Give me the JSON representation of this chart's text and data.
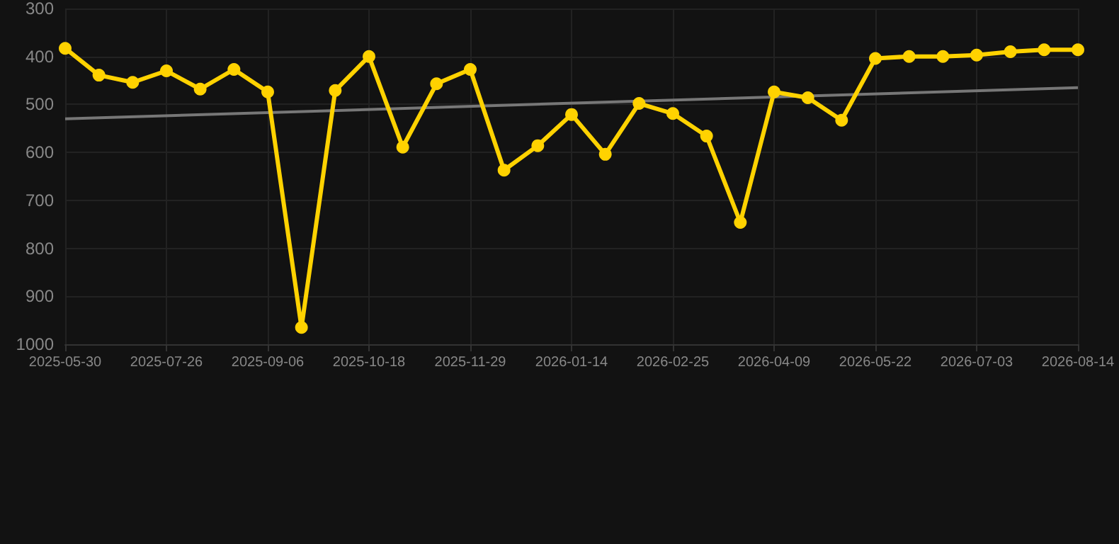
{
  "chart_data": {
    "type": "line",
    "categories": [
      "2025-05-30",
      null,
      null,
      "2025-07-26",
      null,
      null,
      "2025-09-06",
      null,
      null,
      "2025-10-18",
      null,
      null,
      "2025-11-29",
      null,
      null,
      "2026-01-14",
      null,
      null,
      "2026-02-25",
      null,
      null,
      "2026-04-09",
      null,
      null,
      "2026-05-22",
      null,
      null,
      "2026-07-03",
      null,
      null,
      "2026-08-14"
    ],
    "series": [
      {
        "color": "#ffd200",
        "marker": "circle",
        "values": [
          383,
          439,
          454,
          430,
          468,
          427,
          474,
          965,
          471,
          400,
          589,
          457,
          427,
          637,
          586,
          521,
          604,
          498,
          519,
          566,
          746,
          474,
          486,
          533,
          404,
          400,
          400,
          397,
          390,
          386,
          386
        ]
      },
      {
        "color": "#777777",
        "marker": "none",
        "values": [
          530,
          null,
          null,
          null,
          null,
          null,
          null,
          null,
          null,
          null,
          null,
          null,
          null,
          null,
          null,
          null,
          null,
          null,
          null,
          null,
          null,
          null,
          null,
          null,
          null,
          null,
          null,
          null,
          null,
          null,
          465
        ]
      }
    ],
    "ylim": [
      1000,
      300
    ],
    "yticks": [
      300,
      400,
      500,
      600,
      700,
      800,
      900,
      1000
    ],
    "grid": true
  }
}
